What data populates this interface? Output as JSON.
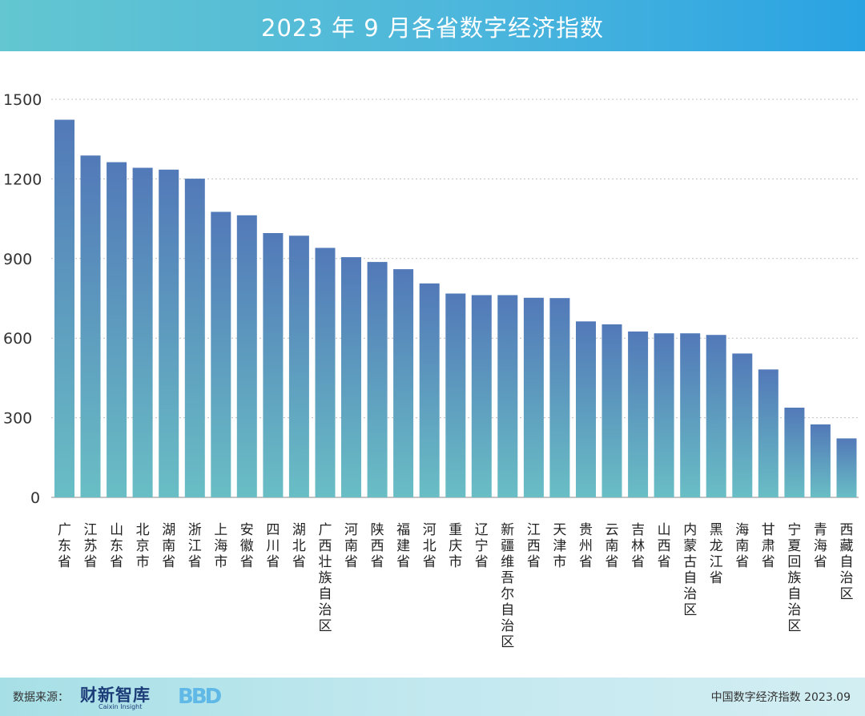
{
  "chart_data": {
    "type": "bar",
    "title": "2023 年 9 月各省数字经济指数",
    "xlabel": "",
    "ylabel": "",
    "ylim": [
      0,
      1500
    ],
    "yticks": [
      0,
      300,
      600,
      900,
      1200,
      1500
    ],
    "grid": true,
    "categories": [
      "广东省",
      "江苏省",
      "山东省",
      "北京市",
      "湖南省",
      "浙江省",
      "上海市",
      "安徽省",
      "四川省",
      "湖北省",
      "广西壮族自治区",
      "河南省",
      "陕西省",
      "福建省",
      "河北省",
      "重庆市",
      "辽宁省",
      "新疆维吾尔自治区",
      "江西省",
      "天津市",
      "贵州省",
      "云南省",
      "吉林省",
      "山西省",
      "内蒙古自治区",
      "黑龙江省",
      "海南省",
      "甘肃省",
      "宁夏回族自治区",
      "青海省",
      "西藏自治区"
    ],
    "values": [
      1423,
      1288,
      1263,
      1242,
      1235,
      1201,
      1076,
      1063,
      996,
      986,
      940,
      905,
      887,
      860,
      806,
      768,
      762,
      762,
      752,
      751,
      663,
      652,
      625,
      618,
      618,
      612,
      542,
      482,
      338,
      275,
      222
    ],
    "colors": {
      "top": "#5279b8",
      "bottom": "#69bec5"
    }
  },
  "footer": {
    "source_label": "数据来源：",
    "brand": "财新智库",
    "brand_sub": "Caixin Insight",
    "bbd": "BBD",
    "right_text": "中国数字经济指数 2023.09"
  }
}
